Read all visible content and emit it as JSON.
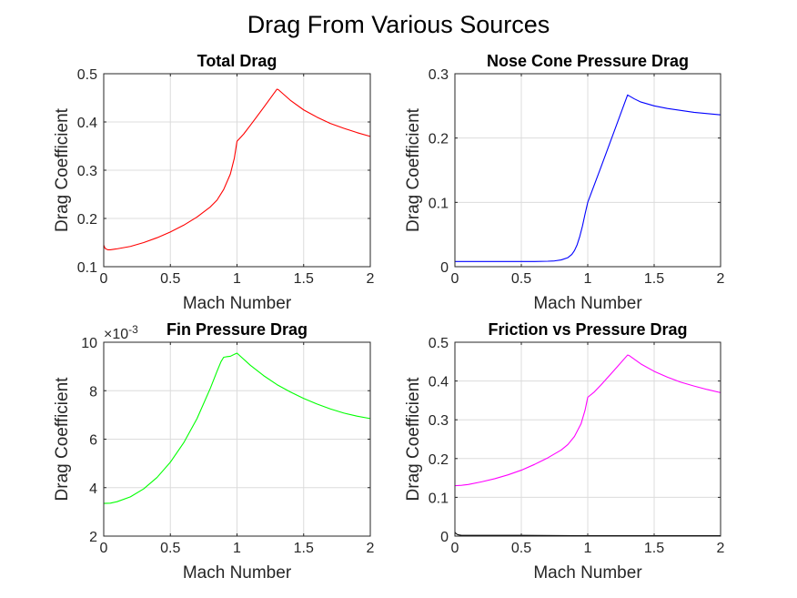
{
  "figure": {
    "title": "Drag From Various Sources",
    "background": "#ffffff"
  },
  "chart_data": [
    {
      "type": "line",
      "title": "Total Drag",
      "xlabel": "Mach Number",
      "ylabel": "Drag Coefficient",
      "xlim": [
        0,
        2
      ],
      "ylim": [
        0.1,
        0.5
      ],
      "xticks": [
        "0",
        "0.5",
        "1",
        "1.5",
        "2"
      ],
      "yticks": [
        "0.1",
        "0.2",
        "0.3",
        "0.4",
        "0.5"
      ],
      "grid": true,
      "series": [
        {
          "color": "#ff0000",
          "x": [
            0,
            0.01,
            0.03,
            0.05,
            0.1,
            0.2,
            0.3,
            0.4,
            0.5,
            0.6,
            0.7,
            0.8,
            0.85,
            0.9,
            0.95,
            0.98,
            1.0,
            1.05,
            1.1,
            1.2,
            1.3,
            1.31,
            1.4,
            1.5,
            1.6,
            1.7,
            1.8,
            1.9,
            2.0
          ],
          "y": [
            0.145,
            0.138,
            0.135,
            0.135,
            0.137,
            0.142,
            0.15,
            0.16,
            0.172,
            0.186,
            0.203,
            0.224,
            0.238,
            0.26,
            0.292,
            0.325,
            0.36,
            0.375,
            0.393,
            0.43,
            0.468,
            0.467,
            0.445,
            0.425,
            0.41,
            0.397,
            0.387,
            0.378,
            0.37
          ]
        }
      ]
    },
    {
      "type": "line",
      "title": "Nose Cone Pressure Drag",
      "xlabel": "Mach Number",
      "ylabel": "Drag Coefficient",
      "xlim": [
        0,
        2
      ],
      "ylim": [
        0,
        0.3
      ],
      "xticks": [
        "0",
        "0.5",
        "1",
        "1.5",
        "2"
      ],
      "yticks": [
        "0",
        "0.1",
        "0.2",
        "0.3"
      ],
      "grid": true,
      "series": [
        {
          "color": "#0000ff",
          "x": [
            0,
            0.2,
            0.4,
            0.6,
            0.7,
            0.75,
            0.8,
            0.85,
            0.88,
            0.9,
            0.92,
            0.94,
            0.96,
            0.98,
            1.0,
            1.1,
            1.2,
            1.3,
            1.35,
            1.4,
            1.5,
            1.6,
            1.7,
            1.8,
            1.9,
            2.0
          ],
          "y": [
            0.008,
            0.008,
            0.008,
            0.008,
            0.0085,
            0.009,
            0.0105,
            0.014,
            0.019,
            0.025,
            0.034,
            0.047,
            0.063,
            0.082,
            0.1,
            0.155,
            0.211,
            0.267,
            0.261,
            0.256,
            0.25,
            0.246,
            0.243,
            0.24,
            0.238,
            0.236
          ]
        }
      ]
    },
    {
      "type": "line",
      "title": "Fin Pressure Drag",
      "xlabel": "Mach Number",
      "ylabel": "Drag Coefficient",
      "xlim": [
        0,
        2
      ],
      "ylim": [
        2,
        10
      ],
      "exponent_label": "×10",
      "exponent_value": "-3",
      "xticks": [
        "0",
        "0.5",
        "1",
        "1.5",
        "2"
      ],
      "yticks": [
        "2",
        "4",
        "6",
        "8",
        "10"
      ],
      "grid": true,
      "series": [
        {
          "color": "#00ff00",
          "x": [
            0,
            0.05,
            0.1,
            0.2,
            0.3,
            0.4,
            0.5,
            0.6,
            0.7,
            0.8,
            0.85,
            0.88,
            0.9,
            0.92,
            0.95,
            0.98,
            1.0,
            1.1,
            1.2,
            1.3,
            1.4,
            1.5,
            1.6,
            1.7,
            1.8,
            1.9,
            2.0
          ],
          "y": [
            3.35,
            3.36,
            3.42,
            3.62,
            3.95,
            4.42,
            5.05,
            5.85,
            6.85,
            8.1,
            8.8,
            9.2,
            9.38,
            9.4,
            9.42,
            9.5,
            9.55,
            9.05,
            8.62,
            8.25,
            7.95,
            7.68,
            7.45,
            7.25,
            7.08,
            6.95,
            6.85
          ]
        }
      ]
    },
    {
      "type": "line",
      "title": "Friction vs Pressure Drag",
      "xlabel": "Mach Number",
      "ylabel": "Drag Coefficient",
      "xlim": [
        0,
        2
      ],
      "ylim": [
        0,
        0.5
      ],
      "xticks": [
        "0",
        "0.5",
        "1",
        "1.5",
        "2"
      ],
      "yticks": [
        "0",
        "0.1",
        "0.2",
        "0.3",
        "0.4",
        "0.5"
      ],
      "grid": true,
      "series": [
        {
          "color": "#ff00ff",
          "x": [
            0,
            0.05,
            0.1,
            0.2,
            0.3,
            0.4,
            0.5,
            0.6,
            0.7,
            0.8,
            0.85,
            0.9,
            0.95,
            0.98,
            1.0,
            1.05,
            1.1,
            1.2,
            1.3,
            1.31,
            1.4,
            1.5,
            1.6,
            1.7,
            1.8,
            1.9,
            2.0
          ],
          "y": [
            0.13,
            0.131,
            0.133,
            0.14,
            0.148,
            0.158,
            0.17,
            0.185,
            0.202,
            0.222,
            0.236,
            0.257,
            0.29,
            0.325,
            0.358,
            0.372,
            0.39,
            0.428,
            0.467,
            0.466,
            0.444,
            0.425,
            0.41,
            0.397,
            0.387,
            0.378,
            0.37
          ]
        },
        {
          "color": "#000000",
          "x": [
            0,
            0.01,
            0.02,
            0.03,
            0.05,
            0.1,
            0.5,
            1.0,
            1.5,
            2.0
          ],
          "y": [
            0.01,
            0.006,
            0.004,
            0.003,
            0.002,
            0.002,
            0.002,
            0.001,
            0.001,
            0.001
          ]
        }
      ]
    }
  ]
}
